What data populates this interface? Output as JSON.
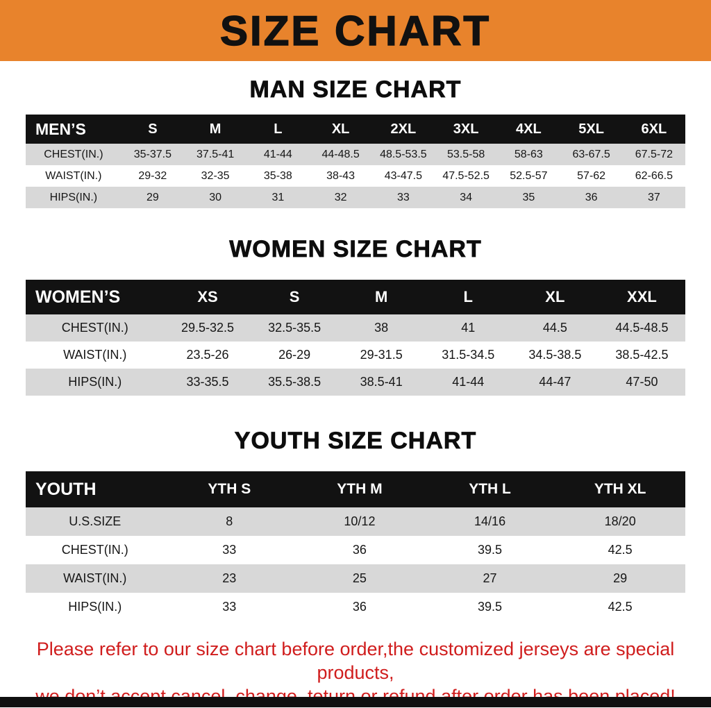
{
  "page": {
    "title": "SIZE CHART"
  },
  "colors": {
    "banner_bg": "#E8832C",
    "table_header_bg": "#121212",
    "row_stripe": "#d8d8d8",
    "disclaimer_text": "#d01d1d",
    "bottom_bar": "#101010"
  },
  "tables": [
    {
      "section_title": "MAN SIZE CHART",
      "header": [
        "MEN’S",
        "S",
        "M",
        "L",
        "XL",
        "2XL",
        "3XL",
        "4XL",
        "5XL",
        "6XL"
      ],
      "rows": [
        [
          "CHEST(IN.)",
          "35-37.5",
          "37.5-41",
          "41-44",
          "44-48.5",
          "48.5-53.5",
          "53.5-58",
          "58-63",
          "63-67.5",
          "67.5-72"
        ],
        [
          "WAIST(IN.)",
          "29-32",
          "32-35",
          "35-38",
          "38-43",
          "43-47.5",
          "47.5-52.5",
          "52.5-57",
          "57-62",
          "62-66.5"
        ],
        [
          "HIPS(IN.)",
          "29",
          "30",
          "31",
          "32",
          "33",
          "34",
          "35",
          "36",
          "37"
        ]
      ]
    },
    {
      "section_title": "WOMEN SIZE CHART",
      "header": [
        "WOMEN’S",
        "XS",
        "S",
        "M",
        "L",
        "XL",
        "XXL"
      ],
      "rows": [
        [
          "CHEST(IN.)",
          "29.5-32.5",
          "32.5-35.5",
          "38",
          "41",
          "44.5",
          "44.5-48.5"
        ],
        [
          "WAIST(IN.)",
          "23.5-26",
          "26-29",
          "29-31.5",
          "31.5-34.5",
          "34.5-38.5",
          "38.5-42.5"
        ],
        [
          "HIPS(IN.)",
          "33-35.5",
          "35.5-38.5",
          "38.5-41",
          "41-44",
          "44-47",
          "47-50"
        ]
      ]
    },
    {
      "section_title": "YOUTH SIZE CHART",
      "header": [
        "YOUTH",
        "YTH S",
        "YTH M",
        "YTH L",
        "YTH XL"
      ],
      "rows": [
        [
          "U.S.SIZE",
          "8",
          "10/12",
          "14/16",
          "18/20"
        ],
        [
          "CHEST(IN.)",
          "33",
          "36",
          "39.5",
          "42.5"
        ],
        [
          "WAIST(IN.)",
          "23",
          "25",
          "27",
          "29"
        ],
        [
          "HIPS(IN.)",
          "33",
          "36",
          "39.5",
          "42.5"
        ]
      ]
    }
  ],
  "footer": {
    "line1": "Please refer to our size chart before order,the customized jerseys are special products,",
    "line2": "we don’t accept cancel, change, teturn or refund after order has been placed!"
  }
}
